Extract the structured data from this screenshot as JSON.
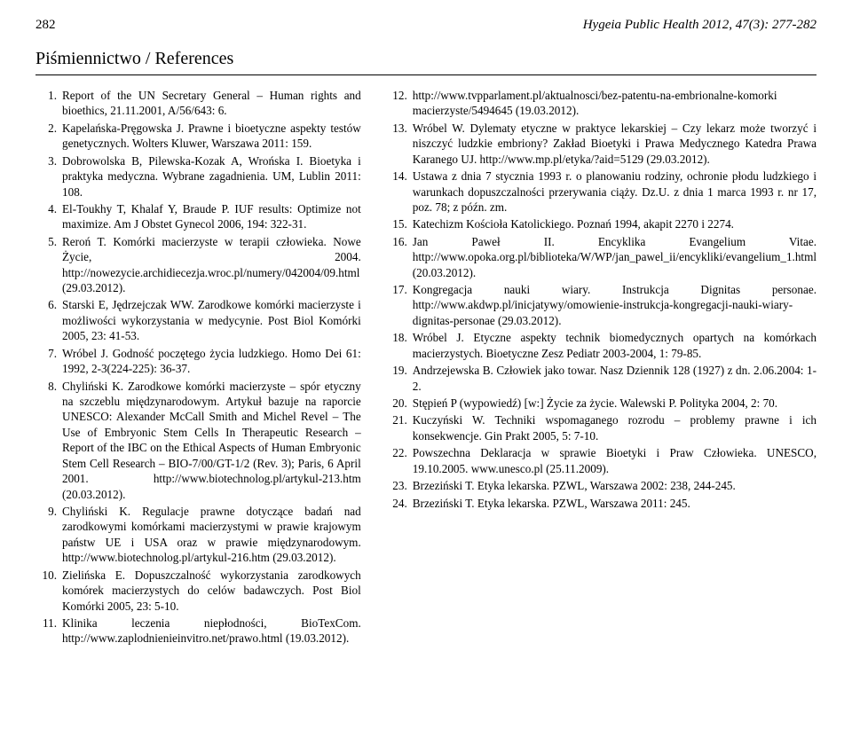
{
  "header": {
    "page_num": "282",
    "journal": "Hygeia Public Health 2012, 47(3): 277-282"
  },
  "section_title": "Piśmiennictwo / References",
  "left": [
    {
      "n": "1.",
      "t": "Report of the UN Secretary General – Human rights and bioethics, 21.11.2001, A/56/643: 6."
    },
    {
      "n": "2.",
      "t": "Kapelańska-Pręgowska J. Prawne i bioetyczne aspekty testów genetycznych. Wolters Kluwer, Warszawa 2011: 159."
    },
    {
      "n": "3.",
      "t": "Dobrowolska B, Pilewska-Kozak A, Wrońska I. Bioetyka i praktyka medyczna. Wybrane zagadnienia. UM, Lublin 2011: 108."
    },
    {
      "n": "4.",
      "t": "El-Toukhy T, Khalaf Y, Braude P. IUF results: Optimize not maximize. Am J Obstet Gynecol 2006, 194: 322-31."
    },
    {
      "n": "5.",
      "t": "Reroń T. Komórki macierzyste w terapii człowieka. Nowe Życie, 2004. http://nowezycie.archidiecezja.wroc.pl/numery/042004/09.html (29.03.2012)."
    },
    {
      "n": "6.",
      "t": "Starski E, Jędrzejczak WW. Zarodkowe komórki macierzyste i możliwości wykorzystania w medycynie. Post Biol Komórki 2005, 23: 41-53."
    },
    {
      "n": "7.",
      "t": "Wróbel J. Godność poczętego życia ludzkiego. Homo Dei 61: 1992, 2-3(224-225): 36-37."
    },
    {
      "n": "8.",
      "t": "Chyliński K. Zarodkowe komórki macierzyste – spór etyczny na szczeblu międzynarodowym. Artykuł bazuje na raporcie UNESCO: Alexander McCall Smith and Michel Revel – The Use of Embryonic Stem Cells In Therapeutic Research – Report of the IBC on the Ethical Aspects of Human Embryonic Stem Cell Research – BIO-7/00/GT-1/2 (Rev. 3); Paris, 6 April 2001. http://www.biotechnolog.pl/artykul-213.htm (20.03.2012)."
    },
    {
      "n": "9.",
      "t": "Chyliński K. Regulacje prawne dotyczące badań nad zarodkowymi komórkami macierzystymi w prawie krajowym państw UE i USA oraz w prawie międzynarodowym. http://www.biotechnolog.pl/artykul-216.htm (29.03.2012)."
    },
    {
      "n": "10.",
      "t": "Zielińska E. Dopuszczalność wykorzystania zarodkowych komórek macierzystych do celów badawczych. Post Biol Komórki 2005, 23: 5-10."
    },
    {
      "n": "11.",
      "t": "Klinika leczenia niepłodności, BioTexCom. http://www.zaplodnienieinvitro.net/prawo.html (19.03.2012)."
    }
  ],
  "right": [
    {
      "n": "12.",
      "t": "http://www.tvpparlament.pl/aktualnosci/bez-patentu-na-embrionalne-komorki macierzyste/5494645 (19.03.2012)."
    },
    {
      "n": "13.",
      "t": "Wróbel W. Dylematy etyczne w praktyce lekarskiej – Czy lekarz może tworzyć i niszczyć ludzkie embriony? Zakład Bioetyki i Prawa Medycznego Katedra Prawa Karanego UJ. http://www.mp.pl/etyka/?aid=5129 (29.03.2012)."
    },
    {
      "n": "14.",
      "t": "Ustawa z dnia 7 stycznia 1993 r. o planowaniu rodziny, ochronie płodu ludzkiego i warunkach dopuszczalności przerywania ciąży. Dz.U. z dnia 1 marca 1993 r. nr 17, poz. 78; z późn. zm."
    },
    {
      "n": "15.",
      "t": "Katechizm Kościoła Katolickiego. Poznań 1994, akapit 2270 i 2274."
    },
    {
      "n": "16.",
      "t": "Jan Paweł II. Encyklika Evangelium Vitae. http://www.opoka.org.pl/biblioteka/W/WP/jan_pawel_ii/encykliki/evangelium_1.html (20.03.2012)."
    },
    {
      "n": "17.",
      "t": "Kongregacja nauki wiary. Instrukcja Dignitas personae. http://www.akdwp.pl/inicjatywy/omowienie-instrukcja-kongregacji-nauki-wiary-dignitas-personae (29.03.2012)."
    },
    {
      "n": "18.",
      "t": "Wróbel J. Etyczne aspekty technik biomedycznych opartych na komórkach macierzystych. Bioetyczne Zesz Pediatr 2003-2004, 1: 79-85."
    },
    {
      "n": "19.",
      "t": "Andrzejewska B. Człowiek jako towar. Nasz Dziennik 128 (1927) z dn. 2.06.2004: 1-2."
    },
    {
      "n": "20.",
      "t": "Stępień P (wypowiedź) [w:] Życie za życie. Walewski P. Polityka 2004, 2: 70."
    },
    {
      "n": "21.",
      "t": "Kuczyński W. Techniki wspomaganego rozrodu – problemy prawne i ich konsekwencje. Gin Prakt 2005, 5: 7-10."
    },
    {
      "n": "22.",
      "t": "Powszechna Deklaracja w sprawie Bioetyki i Praw Człowieka. UNESCO, 19.10.2005. www.unesco.pl (25.11.2009)."
    },
    {
      "n": "23.",
      "t": "Brzeziński T. Etyka lekarska. PZWL, Warszawa 2002: 238, 244-245."
    },
    {
      "n": "24.",
      "t": "Brzeziński T. Etyka lekarska. PZWL, Warszawa 2011: 245."
    }
  ]
}
